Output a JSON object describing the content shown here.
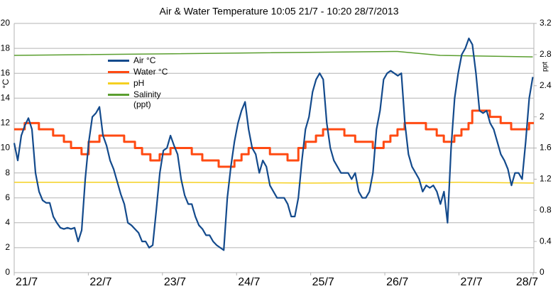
{
  "chart_data": {
    "type": "line",
    "title": "Air & Water Temperature 10:05 21/7 - 10:20 28/7/2013",
    "y_label": "°C",
    "y2_label": "ppt",
    "xlim": [
      0,
      168.25
    ],
    "xticks": [
      {
        "value": 0,
        "label": "21/7"
      },
      {
        "value": 24,
        "label": "22/7"
      },
      {
        "value": 48,
        "label": "23/7"
      },
      {
        "value": 72,
        "label": "24/7"
      },
      {
        "value": 96,
        "label": "25/7"
      },
      {
        "value": 120,
        "label": "26/7"
      },
      {
        "value": 144,
        "label": "27/7"
      },
      {
        "value": 168,
        "label": "28/7"
      }
    ],
    "ylim": [
      0,
      20
    ],
    "yticks": [
      0,
      2,
      4,
      6,
      8,
      10,
      12,
      14,
      16,
      18,
      20
    ],
    "y2lim": [
      0,
      3.2
    ],
    "y2ticks": [
      0,
      0.4,
      0.8,
      1.2,
      1.6,
      2,
      2.4,
      2.8,
      3.2
    ],
    "grid": true,
    "legend": "upper left",
    "series": [
      {
        "name": "Air °C",
        "color": "#134a8c",
        "x": [
          0,
          1.15,
          2.3,
          3.45,
          4.6,
          5.75,
          6.9,
          8.05,
          9.2,
          10.35,
          11.5,
          12.65,
          13.8,
          14.95,
          16.1,
          17.25,
          18.4,
          19.55,
          20.7,
          21.85,
          23,
          24.15,
          25.3,
          26.45,
          27.6,
          28.75,
          29.9,
          31.05,
          32.2,
          33.35,
          34.5,
          35.65,
          36.8,
          37.95,
          39.1,
          40.25,
          41.4,
          42.55,
          43.7,
          44.85,
          46,
          47.15,
          48.3,
          49.45,
          50.6,
          51.75,
          52.9,
          54.05,
          55.2,
          56.35,
          57.5,
          58.65,
          59.8,
          60.95,
          62.1,
          63.25,
          64.4,
          65.55,
          66.7,
          67.85,
          69,
          70.15,
          71.3,
          72.45,
          73.6,
          74.75,
          75.9,
          77.05,
          78.2,
          79.35,
          80.5,
          81.65,
          82.8,
          83.95,
          85.1,
          86.25,
          87.4,
          88.55,
          89.7,
          90.85,
          92,
          93.15,
          94.3,
          95.45,
          96.6,
          97.75,
          98.9,
          100.05,
          101.2,
          102.35,
          103.5,
          104.65,
          105.8,
          106.95,
          108.1,
          109.25,
          110.4,
          111.55,
          112.7,
          113.85,
          115,
          116.15,
          117.3,
          118.45,
          119.6,
          120.75,
          121.9,
          123.05,
          124.2,
          125.35,
          126.5,
          127.65,
          128.8,
          129.95,
          131.1,
          132.25,
          133.4,
          134.55,
          135.7,
          136.85,
          138,
          139.15,
          140.3,
          141.45,
          142.6,
          143.75,
          144.9,
          146.05,
          147.2,
          148.35,
          149.5,
          150.65,
          151.8,
          152.95,
          154.1,
          155.25,
          156.4,
          157.55,
          158.7,
          159.85,
          161,
          162.15,
          163.3,
          164.45,
          165.6,
          166.75,
          167.9
        ],
        "values": [
          10.4,
          9,
          11,
          11.8,
          12.4,
          11.5,
          8,
          6.5,
          5.8,
          5.6,
          5.6,
          4.5,
          4,
          3.6,
          3.5,
          3.6,
          3.5,
          3.6,
          2.5,
          3.4,
          7.5,
          10.5,
          12.5,
          12.8,
          13.3,
          11,
          10.2,
          9,
          8.3,
          7.3,
          6.3,
          5.5,
          4,
          3.8,
          3.5,
          3.2,
          2.5,
          2.5,
          2,
          2.2,
          5,
          8,
          9.8,
          10,
          11,
          10.2,
          9.5,
          7.5,
          6.2,
          5.5,
          5.5,
          4.5,
          3.8,
          3.5,
          3,
          3,
          2.5,
          2.2,
          2,
          1.8,
          6,
          8.5,
          10.5,
          12,
          13,
          13.7,
          11.5,
          10,
          9.5,
          8,
          9,
          8.5,
          7,
          6.5,
          6,
          6,
          6,
          5.5,
          4.5,
          4.5,
          6,
          9,
          11.5,
          12.5,
          14.5,
          15.5,
          16,
          15.5,
          12,
          10,
          9,
          8.5,
          8,
          8,
          8,
          7.5,
          8,
          6.5,
          6,
          6,
          6.5,
          8,
          11.5,
          13,
          15.5,
          16,
          16.2,
          16,
          15.8,
          16,
          12,
          9.5,
          8.5,
          8,
          7.5,
          6.5,
          7,
          6.8,
          7,
          6.5,
          5.5,
          6.5,
          4,
          10,
          14,
          16,
          17.5,
          18,
          18.8,
          18.3,
          16,
          13,
          12.8,
          13,
          12,
          11.5,
          10.5,
          9.5,
          9,
          8.3,
          7,
          8,
          8,
          7.5,
          10.5,
          14,
          15.7
        ]
      },
      {
        "name": "Water °C",
        "color": "#ff4a12",
        "step": "after",
        "x": [
          0,
          3.4,
          8.0,
          12.6,
          16.1,
          18.4,
          21.8,
          24.1,
          27.6,
          35.6,
          39.1,
          41.4,
          44.1,
          47.1,
          50.6,
          57.5,
          60.9,
          66.2,
          71.3,
          73.6,
          75.9,
          82.8,
          88.5,
          92.0,
          94.3,
          97.7,
          100.0,
          106.9,
          110.4,
          116.1,
          119.6,
          121.8,
          124.1,
          126.4,
          133.3,
          136.8,
          139.1,
          142.5,
          144.8,
          147.1,
          148.3,
          154.0,
          157.5,
          160.9,
          166.7,
          168.25
        ],
        "values": [
          11.5,
          12,
          11.5,
          11,
          10.5,
          10,
          9.5,
          10.5,
          11,
          10.5,
          10,
          9.5,
          9,
          9.5,
          10,
          9.5,
          9,
          8.5,
          9,
          9.5,
          10,
          9.5,
          9,
          10,
          10.5,
          11,
          11.5,
          11,
          10.5,
          10,
          10.5,
          11,
          11.5,
          12,
          11.5,
          11,
          10.5,
          11,
          11.5,
          12,
          13,
          12.5,
          12,
          11.5,
          12,
          12
        ]
      },
      {
        "name": "pH",
        "color": "#f5d020",
        "axis": "y2",
        "x": [
          0,
          48,
          96,
          144,
          168.25
        ],
        "values": [
          1.16,
          1.16,
          1.15,
          1.16,
          1.15
        ]
      },
      {
        "name": "Salinity (ppt)",
        "color": "#5a9e2f",
        "axis": "y2",
        "x": [
          0,
          123.0,
          124.1,
          137.9,
          167.9
        ],
        "values": [
          2.79,
          2.84,
          2.84,
          2.79,
          2.77
        ]
      }
    ]
  }
}
